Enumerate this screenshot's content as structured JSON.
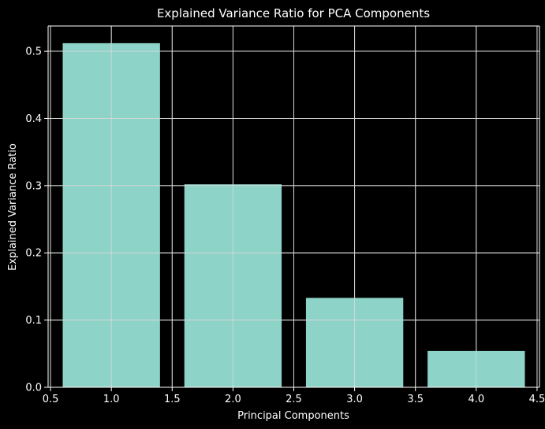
{
  "colors": {
    "background": "#000000",
    "foreground": "#ffffff",
    "bar": "#8dd3c7",
    "grid": "#d8d8d8"
  },
  "chart_data": {
    "type": "bar",
    "title": "Explained Variance Ratio for PCA Components",
    "xlabel": "Principal Components",
    "ylabel": "Explained Variance Ratio",
    "x": [
      1,
      2,
      3,
      4
    ],
    "values": [
      0.512,
      0.302,
      0.133,
      0.054
    ],
    "bar_width": 0.8,
    "xlim": [
      0.48,
      4.52
    ],
    "ylim": [
      0,
      0.5376
    ],
    "xticks": [
      0.5,
      1.0,
      1.5,
      2.0,
      2.5,
      3.0,
      3.5,
      4.0,
      4.5
    ],
    "xtick_labels": [
      "0.5",
      "1.0",
      "1.5",
      "2.0",
      "2.5",
      "3.0",
      "3.5",
      "4.0",
      "4.5"
    ],
    "yticks": [
      0.0,
      0.1,
      0.2,
      0.3,
      0.4,
      0.5
    ],
    "ytick_labels": [
      "0.0",
      "0.1",
      "0.2",
      "0.3",
      "0.4",
      "0.5"
    ],
    "grid": true
  }
}
